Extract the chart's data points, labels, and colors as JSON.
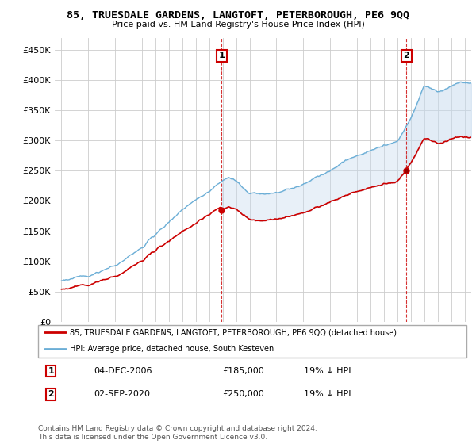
{
  "title": "85, TRUESDALE GARDENS, LANGTOFT, PETERBOROUGH, PE6 9QQ",
  "subtitle": "Price paid vs. HM Land Registry's House Price Index (HPI)",
  "legend_line1": "85, TRUESDALE GARDENS, LANGTOFT, PETERBOROUGH, PE6 9QQ (detached house)",
  "legend_line2": "HPI: Average price, detached house, South Kesteven",
  "annotation1_date": "04-DEC-2006",
  "annotation1_price": "£185,000",
  "annotation1_hpi": "19% ↓ HPI",
  "annotation2_date": "02-SEP-2020",
  "annotation2_price": "£250,000",
  "annotation2_hpi": "19% ↓ HPI",
  "footer": "Contains HM Land Registry data © Crown copyright and database right 2024.\nThis data is licensed under the Open Government Licence v3.0.",
  "hpi_color": "#6baed6",
  "hpi_fill_color": "#c6dbef",
  "price_color": "#cc0000",
  "vline_color": "#cc0000",
  "grid_color": "#cccccc",
  "background_color": "#ffffff",
  "ylim": [
    0,
    470000
  ],
  "yticks": [
    0,
    50000,
    100000,
    150000,
    200000,
    250000,
    300000,
    350000,
    400000,
    450000
  ],
  "annotation1_year": 2006.92,
  "annotation2_year": 2020.67,
  "sale1_price": 185000,
  "sale2_price": 250000
}
